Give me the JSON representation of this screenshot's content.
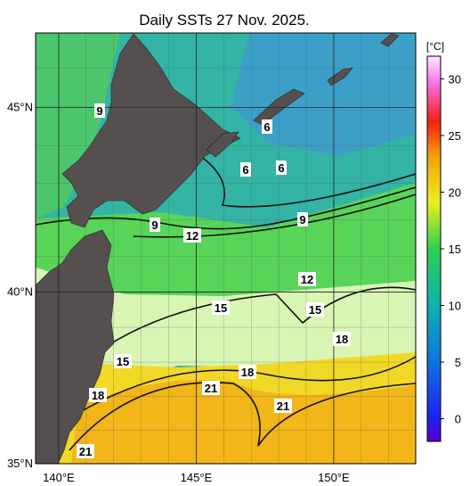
{
  "map": {
    "title": "Daily SSTs 27 Nov. 2025.",
    "lonlim": [
      139.16,
      152.98
    ],
    "latlim": [
      35,
      46.9
    ],
    "lonticks": [
      {
        "value": 140,
        "label": "140°E"
      },
      {
        "value": 145,
        "label": "145°E"
      },
      {
        "value": 150,
        "label": "150°E"
      }
    ],
    "latticks": [
      {
        "value": 35,
        "label": "35°N"
      },
      {
        "value": 40,
        "label": "40°N"
      },
      {
        "value": 45,
        "label": "45°N"
      }
    ],
    "contour_labels": [
      "9",
      "6",
      "6",
      "6",
      "9",
      "12",
      "9",
      "12",
      "15",
      "15",
      "18",
      "15",
      "18",
      "21",
      "18",
      "21",
      "21"
    ]
  },
  "colorbar": {
    "unit": "[°C]",
    "lim": [
      -2,
      32
    ],
    "ticks": [
      0,
      5,
      10,
      15,
      20,
      25,
      30
    ]
  }
}
